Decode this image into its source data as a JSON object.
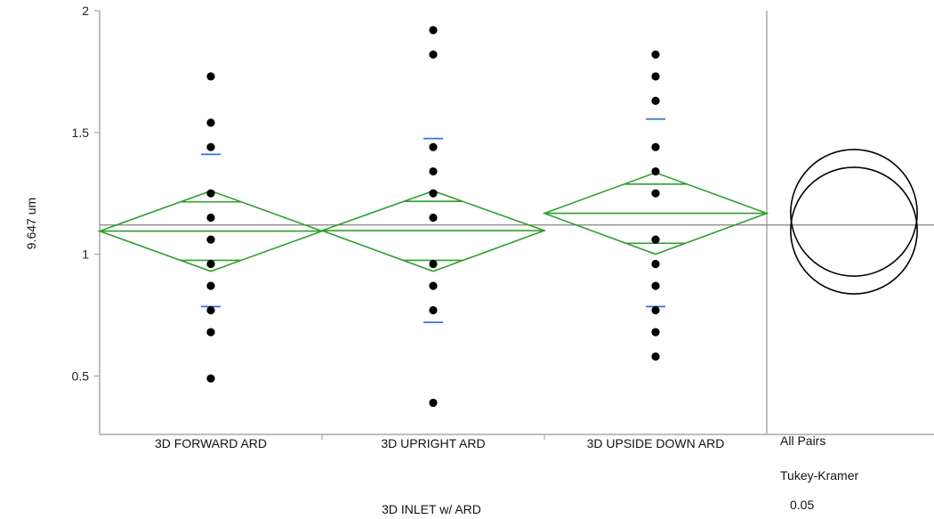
{
  "chart_data": {
    "type": "scatter",
    "subtype": "oneway-means-diamonds",
    "xlabel": "3D INLET w/ ARD",
    "ylabel": "9.647 um",
    "ylim": [
      0.26,
      2.0
    ],
    "yticks": [
      0.5,
      1,
      1.5,
      2
    ],
    "ytick_labels": [
      "0.5",
      "1",
      "1.5",
      "2"
    ],
    "categories": [
      "3D FORWARD ARD",
      "3D UPRIGHT ARD",
      "3D UPSIDE DOWN ARD"
    ],
    "grand_mean": 1.12,
    "points": [
      [
        1.73,
        1.54,
        1.44,
        1.25,
        1.15,
        1.06,
        0.96,
        0.87,
        0.77,
        0.68,
        0.49
      ],
      [
        1.92,
        1.82,
        1.44,
        1.34,
        1.25,
        1.15,
        0.96,
        0.87,
        0.77,
        0.39
      ],
      [
        1.82,
        1.73,
        1.63,
        1.44,
        1.34,
        1.25,
        1.06,
        0.96,
        0.87,
        0.77,
        0.68,
        0.58
      ]
    ],
    "means": [
      1.095,
      1.097,
      1.168
    ],
    "ci": [
      [
        0.93,
        1.26
      ],
      [
        0.93,
        1.26
      ],
      [
        1.0,
        1.335
      ]
    ],
    "overlap_marks": [
      [
        0.975,
        1.215
      ],
      [
        0.975,
        1.217
      ],
      [
        1.045,
        1.288
      ]
    ],
    "std_dev_marks": [
      [
        0.785,
        1.41
      ],
      [
        0.72,
        1.475
      ],
      [
        0.785,
        1.555
      ]
    ],
    "colors": {
      "diamond": "#2e9e2e",
      "std_dev": "#3a6fe0",
      "points": "#000000",
      "axis": "#a8a8a8",
      "grand_mean": "#808080"
    },
    "comparison_circles": {
      "test": [
        "All Pairs",
        "Tukey-Kramer",
        "0.05"
      ],
      "circles": [
        {
          "center": 1.17,
          "radius": 0.26
        },
        {
          "center": 1.097,
          "radius": 0.26
        }
      ]
    }
  }
}
